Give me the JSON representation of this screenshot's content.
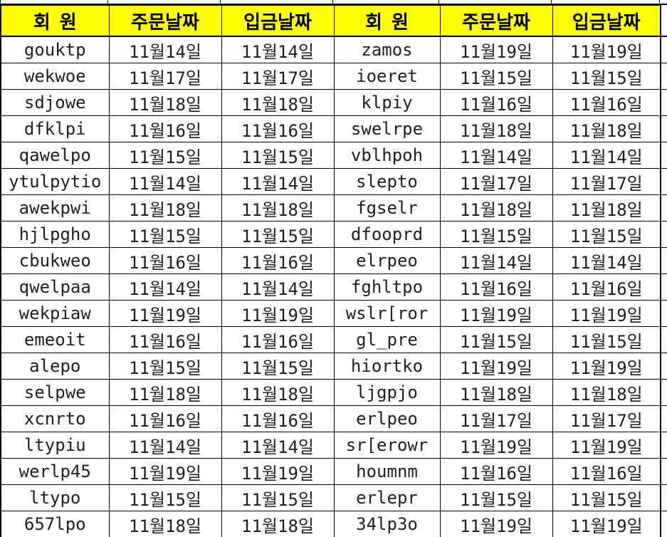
{
  "table": {
    "headers": [
      "회원",
      "주문날짜",
      "입금날짜",
      "회원",
      "주문날짜",
      "입금날짜"
    ],
    "rows": [
      [
        "gouktp",
        "11월14일",
        "11월14일",
        "zamos",
        "11월19일",
        "11월19일"
      ],
      [
        "wekwoe",
        "11월17일",
        "11월17일",
        "ioeret",
        "11월15일",
        "11월15일"
      ],
      [
        "sdjowe",
        "11월18일",
        "11월18일",
        "klpiy",
        "11월16일",
        "11월16일"
      ],
      [
        "dfklpi",
        "11월16일",
        "11월16일",
        "swelrpe",
        "11월18일",
        "11월18일"
      ],
      [
        "qawelpo",
        "11월15일",
        "11월15일",
        "vblhpoh",
        "11월14일",
        "11월14일"
      ],
      [
        "ytulpytio",
        "11월14일",
        "11월14일",
        "slepto",
        "11월17일",
        "11월17일"
      ],
      [
        "awekpwi",
        "11월18일",
        "11월18일",
        "fgselr",
        "11월18일",
        "11월18일"
      ],
      [
        "hjlpgho",
        "11월15일",
        "11월15일",
        "dfooprd",
        "11월15일",
        "11월15일"
      ],
      [
        "cbukweo",
        "11월16일",
        "11월16일",
        "elrpeo",
        "11월14일",
        "11월14일"
      ],
      [
        "qwelpaa",
        "11월14일",
        "11월14일",
        "fghltpo",
        "11월16일",
        "11월16일"
      ],
      [
        "wekpiaw",
        "11월19일",
        "11월19일",
        "wslr[ror",
        "11월19일",
        "11월19일"
      ],
      [
        "emeoit",
        "11월16일",
        "11월16일",
        "gl_pre",
        "11월15일",
        "11월15일"
      ],
      [
        "alepo",
        "11월15일",
        "11월15일",
        "hiortko",
        "11월19일",
        "11월19일"
      ],
      [
        "selpwe",
        "11월18일",
        "11월18일",
        "ljgpjo",
        "11월18일",
        "11월18일"
      ],
      [
        "xcnrto",
        "11월16일",
        "11월16일",
        "erlpeo",
        "11월17일",
        "11월17일"
      ],
      [
        "ltypiu",
        "11월14일",
        "11월14일",
        "sr[erowr",
        "11월19일",
        "11월19일"
      ],
      [
        "werlp45",
        "11월19일",
        "11월19일",
        "houmnm",
        "11월16일",
        "11월16일"
      ],
      [
        "ltypo",
        "11월15일",
        "11월15일",
        "erlepr",
        "11월15일",
        "11월15일"
      ],
      [
        "657lpo",
        "11월18일",
        "11월18일",
        "34lp3o",
        "11월19일",
        "11월19일"
      ]
    ]
  },
  "colors": {
    "header_bg": "#ffff00",
    "grid_border": "#000000",
    "text": "#1f1f1f"
  }
}
